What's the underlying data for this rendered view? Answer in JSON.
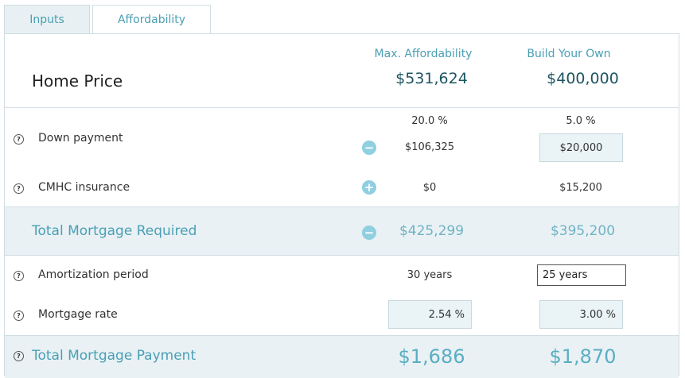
{
  "tabs": {
    "inputs": "Inputs",
    "affordability": "Affordability"
  },
  "header": {
    "label": "Home Price",
    "col1_title": "Max. Affordability",
    "col2_title": "Build Your Own",
    "col1_value": "$531,624",
    "col2_value": "$400,000"
  },
  "down_payment": {
    "label": "Down payment",
    "col1_percent": "20.0 %",
    "col2_percent": "5.0 %",
    "col1_amount": "$106,325",
    "col2_amount": "$20,000"
  },
  "cmhc": {
    "label": "CMHC insurance",
    "col1": "$0",
    "col2": "$15,200"
  },
  "total_required": {
    "label": "Total Mortgage Required",
    "col1": "$425,299",
    "col2": "$395,200"
  },
  "amortization": {
    "label": "Amortization period",
    "col1": "30 years",
    "col2": "25 years"
  },
  "rate": {
    "label": "Mortgage rate",
    "col1": "2.54 %",
    "col2": "3.00 %"
  },
  "total_payment": {
    "label": "Total Mortgage Payment",
    "col1": "$1,686",
    "col2": "$1,870"
  },
  "icons": {
    "help": "?",
    "minus": "−",
    "plus": "+"
  },
  "colors": {
    "accent": "#4a9fb4",
    "dark_teal": "#1e5562",
    "band": "#e9f1f4"
  }
}
